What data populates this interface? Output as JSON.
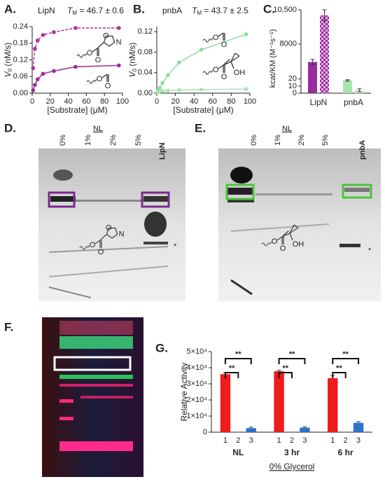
{
  "chart_data": [
    {
      "type": "line",
      "panel": "A.",
      "title": "LipN",
      "tm": {
        "symbol": "T",
        "subscript": "M",
        "text": " = 46.7 ± 0.6"
      },
      "xlabel": "[Substrate] (μM)",
      "ylabel": {
        "symbol": "V",
        "subscript": "0",
        "text": " (nM/s)"
      },
      "x": [
        1,
        3,
        6,
        12,
        24,
        48,
        96
      ],
      "series": [
        {
          "color": "#b0309f",
          "dashed": true,
          "molecule": [
            "O",
            "O",
            "N"
          ],
          "values": [
            0.09,
            0.16,
            0.19,
            0.21,
            0.22,
            0.235,
            0.235
          ]
        },
        {
          "color": "#9b2a9e",
          "dashed": false,
          "molecule": [
            "O",
            "O"
          ],
          "values": [
            0.01,
            0.03,
            0.05,
            0.07,
            0.08,
            0.095,
            0.1
          ]
        }
      ],
      "xlim": [
        0,
        100
      ],
      "xticks": [
        0,
        20,
        40,
        60,
        80,
        100
      ],
      "ylim": [
        0,
        0.24
      ],
      "yticks": [
        {
          "value": 0,
          "label": "0.00"
        },
        {
          "value": 0.06,
          "label": "0.06"
        },
        {
          "value": 0.12,
          "label": "0.12"
        },
        {
          "value": 0.18,
          "label": "0.18"
        },
        {
          "value": 0.24,
          "label": "0.24"
        }
      ]
    },
    {
      "type": "line",
      "panel": "B.",
      "title": "pnbA",
      "tm": {
        "symbol": "T",
        "subscript": "M",
        "text": " = 43.7 ± 2.5"
      },
      "xlabel": "[Substrate] (μM)",
      "ylabel": {
        "symbol": "V",
        "subscript": "0",
        "text": " (nM/s)"
      },
      "x": [
        1,
        3,
        6,
        12,
        24,
        48,
        96
      ],
      "series": [
        {
          "color": "#8fdc9c",
          "dashed": false,
          "molecule": [
            "O",
            "O"
          ],
          "values": [
            0.005,
            0.01,
            0.02,
            0.035,
            0.06,
            0.085,
            0.115
          ]
        },
        {
          "color": "#a9e3b2",
          "dashed": false,
          "molecule": [
            "O",
            "O",
            "OH"
          ],
          "values": [
            0.002,
            0.003,
            0.004,
            0.005,
            0.006,
            0.007,
            0.008
          ]
        }
      ],
      "xlim": [
        0,
        100
      ],
      "xticks": [
        0,
        20,
        40,
        60,
        80,
        100
      ],
      "ylim": [
        0,
        0.13
      ],
      "yticks": [
        {
          "value": 0,
          "label": "0.00"
        },
        {
          "value": 0.04,
          "label": "0.04"
        },
        {
          "value": 0.08,
          "label": "0.08"
        },
        {
          "value": 0.12,
          "label": "0.12"
        }
      ]
    },
    {
      "type": "bar",
      "panel": "C.",
      "ylabel": "kcat/KM (M⁻¹s⁻¹)",
      "categories": [
        "LipN",
        "pnbA"
      ],
      "colors": [
        "#9b2a9e",
        "#a8e6b0"
      ],
      "series": [
        {
          "pattern": "solid",
          "values": [
            3900,
            18
          ],
          "errors": [
            600,
            1
          ]
        },
        {
          "pattern": "checkered",
          "values": [
            10100,
            4
          ],
          "errors": [
            400,
            2
          ]
        }
      ],
      "ysegments": [
        [
          0,
          20
        ],
        [
          20,
          8000
        ],
        [
          8000,
          10500
        ]
      ],
      "ylim": [
        0,
        10500
      ],
      "yticks": [
        0,
        10,
        20,
        8000,
        {
          "value": 10500,
          "label": "10,500"
        }
      ]
    },
    {
      "type": "bar",
      "panel": "G.",
      "ylabel": "Relative Activity",
      "xlabel": "0% Glycerol",
      "categories": [
        "NL",
        "3 hr",
        "6 hr"
      ],
      "bar_labels": [
        "1",
        "2",
        "3"
      ],
      "series": [
        {
          "color": "#ee1c1c",
          "values": [
            36000,
            37800,
            33500
          ],
          "errors": [
            800,
            600,
            1500
          ]
        },
        {
          "color": "#ee1c1c",
          "values": [
            0,
            0,
            0
          ],
          "errors": [
            0,
            0,
            0
          ]
        },
        {
          "color": "#2a74c9",
          "values": [
            2500,
            2800,
            5800
          ],
          "errors": [
            600,
            500,
            700
          ]
        }
      ],
      "significance": [
        "**",
        "**",
        "**",
        "**",
        "**",
        "**"
      ],
      "ylim": [
        0,
        50000
      ],
      "yticks": [
        0,
        {
          "value": 10000,
          "label": "1×10⁴"
        },
        {
          "value": 20000,
          "label": "2×10⁴"
        },
        {
          "value": 30000,
          "label": "3×10⁴"
        },
        {
          "value": 40000,
          "label": "4×10⁴"
        },
        {
          "value": 50000,
          "label": "5×10⁴"
        }
      ]
    }
  ],
  "gels": [
    {
      "panel": "D.",
      "group": "NL",
      "lanes": [
        "0%",
        "1%",
        "2%",
        "5%"
      ],
      "enzyme": "LipN",
      "enzyme_color": "#7b2a8e",
      "star": "*",
      "molecule": [
        "O",
        "O",
        "N"
      ]
    },
    {
      "panel": "E.",
      "group": "NL",
      "lanes": [
        "0%",
        "1%",
        "2%",
        "5%"
      ],
      "enzyme": "pnbA",
      "enzyme_color": "#4cc43a",
      "star": "*",
      "molecule": [
        "O",
        "O",
        "OH"
      ]
    },
    {
      "panel": "F."
    }
  ]
}
